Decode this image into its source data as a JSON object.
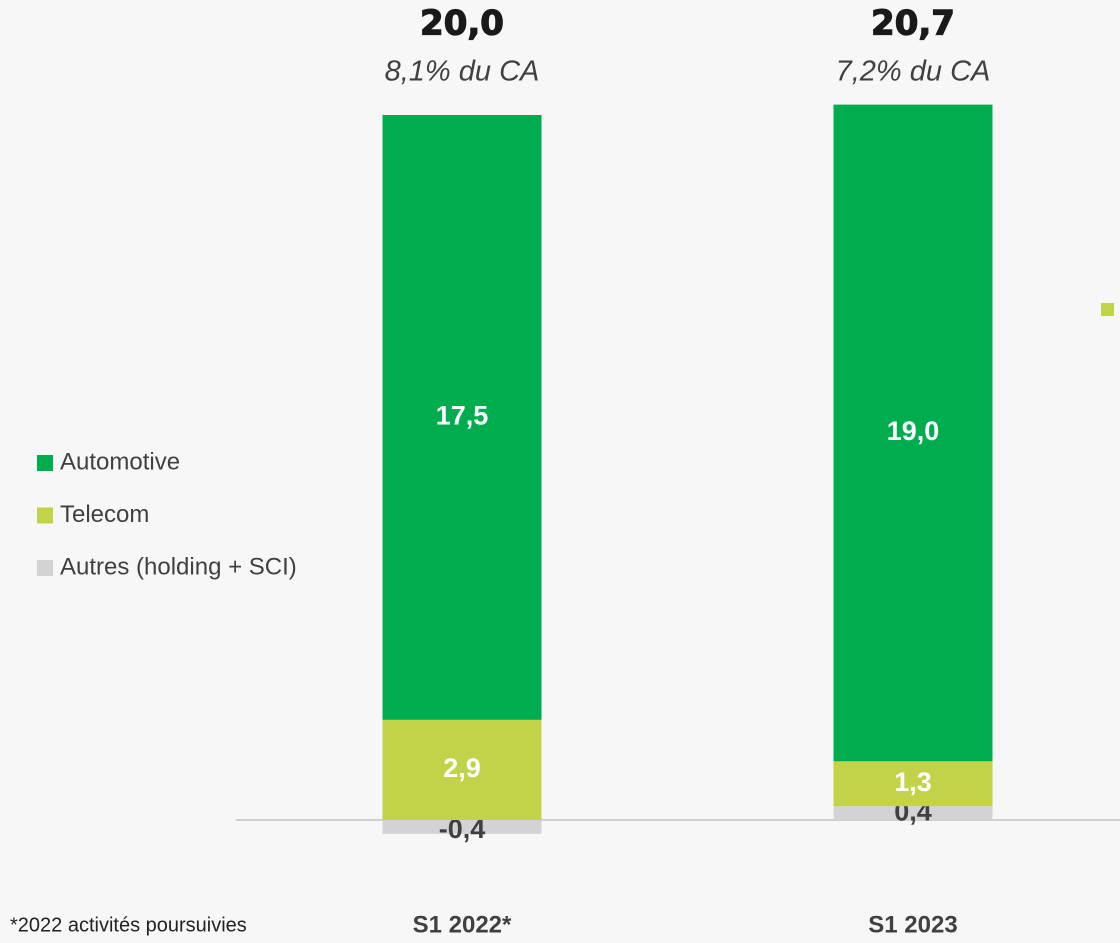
{
  "chart_data": {
    "type": "stacked_bar",
    "categories": [
      "S1 2022*",
      "S1 2023"
    ],
    "series": [
      {
        "name": "Automotive",
        "color": "#00ad4e",
        "values": [
          17.5,
          19.0
        ],
        "value_labels": [
          "17,5",
          "19,0"
        ],
        "label_color": "#ffffff"
      },
      {
        "name": "Telecom",
        "color": "#c2d34a",
        "values": [
          2.9,
          1.3
        ],
        "value_labels": [
          "2,9",
          "1,3"
        ],
        "label_color": "#ffffff"
      },
      {
        "name": "Autres (holding + SCI)",
        "color": "#d3d3d6",
        "values": [
          -0.4,
          0.4
        ],
        "value_labels": [
          "-0,4",
          "0,4"
        ],
        "label_color": "#404040"
      }
    ],
    "totals": [
      20.0,
      20.7
    ],
    "total_labels": [
      "20,0",
      "20,7"
    ],
    "total_notes": [
      "8,1% du CA",
      "7,2% du CA"
    ],
    "footnote": "*2022 activités poursuivies",
    "ylim": [
      -1,
      22
    ],
    "legend": "left"
  }
}
